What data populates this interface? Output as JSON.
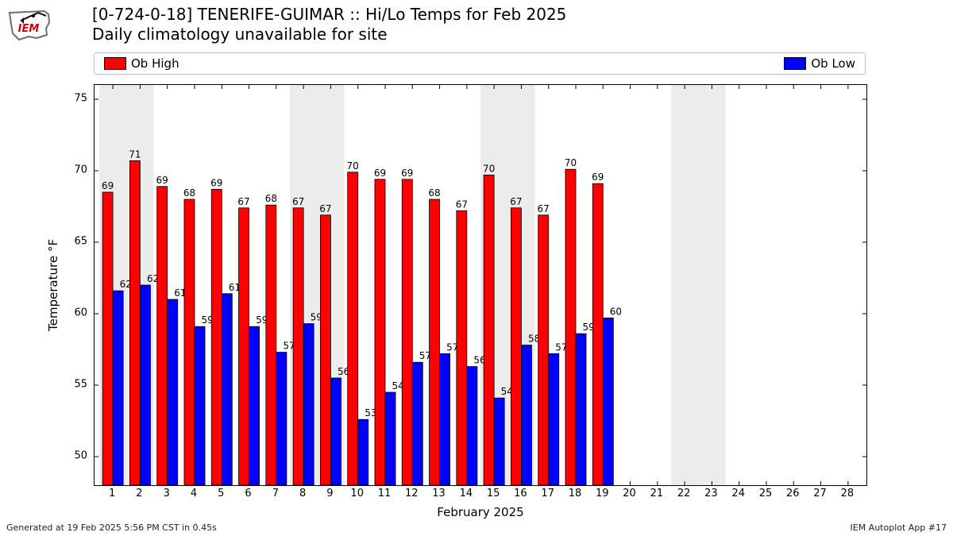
{
  "logo": {
    "text": "IEM",
    "text_color": "#d00000",
    "outline_color": "#6e6e6e",
    "accent_color": "#000000"
  },
  "title": {
    "line1": "[0-724-0-18] TENERIFE-GUIMAR :: Hi/Lo Temps for Feb 2025",
    "line2": "Daily climatology unavailable for site",
    "fontsize": 20
  },
  "legend": {
    "items": [
      {
        "label": "Ob High",
        "color": "#ff0000"
      },
      {
        "label": "Ob Low",
        "color": "#0000ff"
      }
    ]
  },
  "chart": {
    "type": "bar",
    "ylabel": "Temperature °F",
    "xlabel": "February 2025",
    "label_fontsize": 15,
    "tick_fontsize": 13,
    "bar_label_fontsize": 12,
    "ylim": [
      48,
      76
    ],
    "yticks": [
      50,
      55,
      60,
      65,
      70,
      75
    ],
    "days": [
      1,
      2,
      3,
      4,
      5,
      6,
      7,
      8,
      9,
      10,
      11,
      12,
      13,
      14,
      15,
      16,
      17,
      18,
      19,
      20,
      21,
      22,
      23,
      24,
      25,
      26,
      27,
      28
    ],
    "weekend_days": [
      1,
      2,
      8,
      9,
      15,
      16,
      22,
      23
    ],
    "weekend_fill": "#ececec",
    "background": "#ffffff",
    "axis_color": "#000000",
    "bar_border": "#000000",
    "bar_width_each": 0.38,
    "high": {
      "color": "#ff0000",
      "labels": [
        69,
        71,
        69,
        68,
        69,
        67,
        68,
        67,
        67,
        70,
        69,
        69,
        68,
        67,
        70,
        67,
        67,
        70,
        69
      ],
      "values": [
        68.5,
        70.7,
        68.9,
        68.0,
        68.7,
        67.4,
        67.6,
        67.4,
        66.9,
        69.9,
        69.4,
        69.4,
        68.0,
        67.2,
        69.7,
        67.4,
        66.9,
        70.1,
        69.1
      ]
    },
    "low": {
      "color": "#0000ff",
      "labels": [
        62,
        62,
        61,
        59,
        61,
        59,
        57,
        59,
        56,
        53,
        54,
        57,
        57,
        56,
        54,
        58,
        57,
        59,
        60
      ],
      "values": [
        61.6,
        62.0,
        61.0,
        59.1,
        61.4,
        59.1,
        57.3,
        59.3,
        55.5,
        52.6,
        54.5,
        56.6,
        57.2,
        56.3,
        54.1,
        57.8,
        57.2,
        58.6,
        59.7
      ]
    }
  },
  "footer": {
    "left": "Generated at 19 Feb 2025 5:56 PM CST in 0.45s",
    "right": "IEM Autoplot App #17"
  }
}
